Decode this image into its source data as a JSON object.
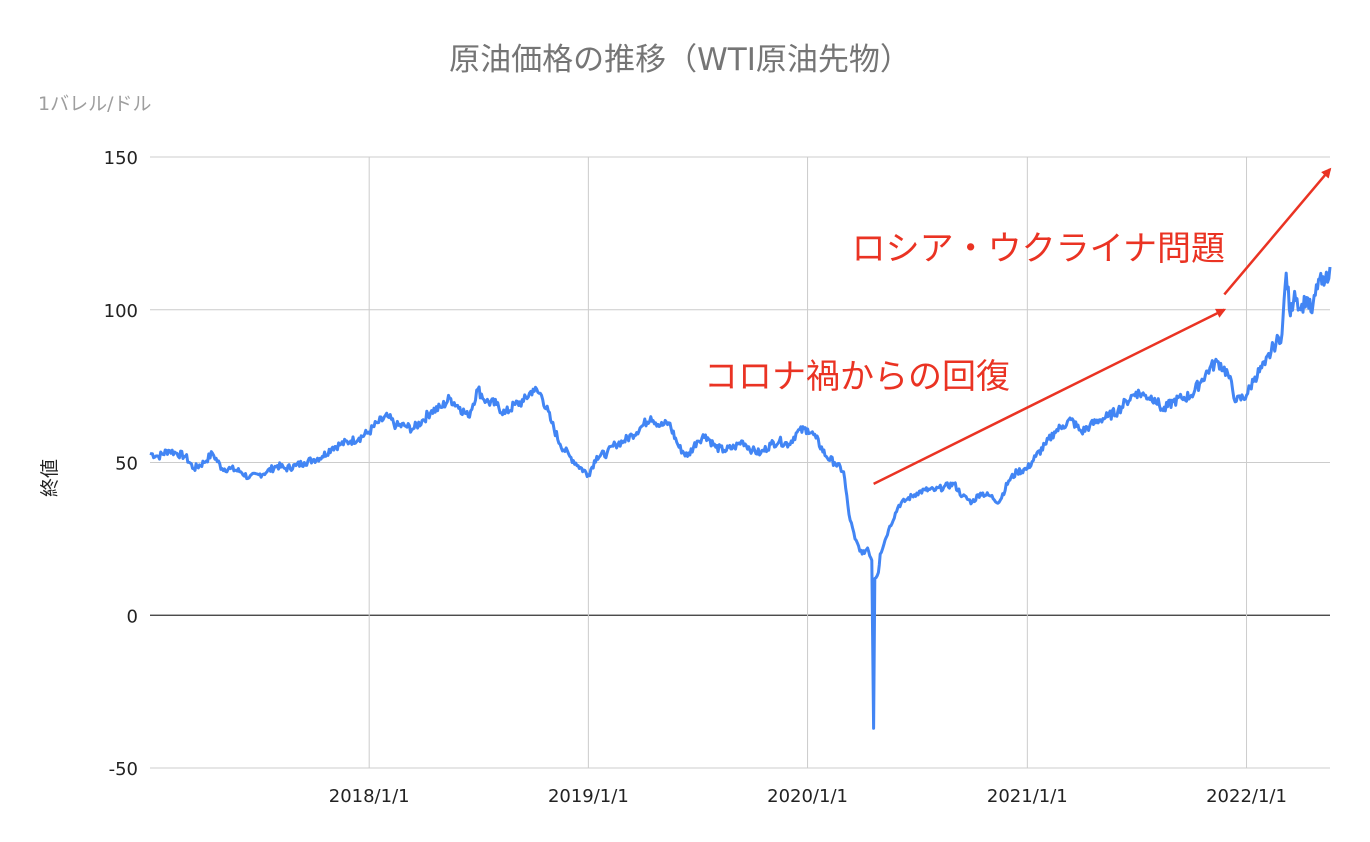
{
  "chart_data": {
    "type": "line",
    "title": "原油価格の推移（WTI原油先物）",
    "unit_label": "1バレル/ドル",
    "xlabel": "",
    "ylabel": "終値",
    "ylim": [
      -50,
      150
    ],
    "yticks": [
      -50,
      0,
      50,
      100,
      150
    ],
    "xlim": [
      "2017-01-01",
      "2022-05-20"
    ],
    "xticks": [
      "2018/1/1",
      "2019/1/1",
      "2020/1/1",
      "2021/1/1",
      "2022/1/1"
    ],
    "grid": true,
    "legend": "none",
    "line_color": "#4285f4",
    "annotation_color": "#ea3323",
    "series": [
      {
        "x": [
          "2017-01-01",
          "2017-01-15",
          "2017-02-01",
          "2017-02-15",
          "2017-03-01",
          "2017-03-15",
          "2017-04-01",
          "2017-04-15",
          "2017-05-01",
          "2017-05-15",
          "2017-06-01",
          "2017-06-15",
          "2017-07-01",
          "2017-07-15",
          "2017-08-01",
          "2017-08-15",
          "2017-09-01",
          "2017-09-15",
          "2017-10-01",
          "2017-10-15",
          "2017-11-01",
          "2017-11-15",
          "2017-12-01",
          "2017-12-15",
          "2018-01-01",
          "2018-01-15",
          "2018-02-01",
          "2018-02-15",
          "2018-03-01",
          "2018-03-15",
          "2018-04-01",
          "2018-04-15",
          "2018-05-01",
          "2018-05-15",
          "2018-06-01",
          "2018-06-15",
          "2018-07-01",
          "2018-07-15",
          "2018-08-01",
          "2018-08-15",
          "2018-09-01",
          "2018-09-15",
          "2018-10-01",
          "2018-10-15",
          "2018-11-01",
          "2018-11-15",
          "2018-12-01",
          "2018-12-15",
          "2019-01-01",
          "2019-01-15",
          "2019-02-01",
          "2019-02-15",
          "2019-03-01",
          "2019-03-15",
          "2019-04-01",
          "2019-04-15",
          "2019-05-01",
          "2019-05-15",
          "2019-06-01",
          "2019-06-15",
          "2019-07-01",
          "2019-07-15",
          "2019-08-01",
          "2019-08-15",
          "2019-09-01",
          "2019-09-15",
          "2019-10-01",
          "2019-10-15",
          "2019-11-01",
          "2019-11-15",
          "2019-12-01",
          "2019-12-15",
          "2020-01-01",
          "2020-01-15",
          "2020-02-01",
          "2020-02-15",
          "2020-03-01",
          "2020-03-10",
          "2020-03-20",
          "2020-04-01",
          "2020-04-10",
          "2020-04-17",
          "2020-04-20",
          "2020-04-22",
          "2020-04-28",
          "2020-05-01",
          "2020-05-15",
          "2020-06-01",
          "2020-06-15",
          "2020-07-01",
          "2020-07-15",
          "2020-08-01",
          "2020-08-15",
          "2020-09-01",
          "2020-09-15",
          "2020-10-01",
          "2020-10-15",
          "2020-11-01",
          "2020-11-15",
          "2020-12-01",
          "2020-12-15",
          "2021-01-01",
          "2021-01-15",
          "2021-02-01",
          "2021-02-15",
          "2021-03-01",
          "2021-03-15",
          "2021-04-01",
          "2021-04-15",
          "2021-05-01",
          "2021-05-15",
          "2021-06-01",
          "2021-06-15",
          "2021-07-01",
          "2021-07-15",
          "2021-08-01",
          "2021-08-15",
          "2021-09-01",
          "2021-09-15",
          "2021-10-01",
          "2021-10-15",
          "2021-11-01",
          "2021-11-15",
          "2021-12-01",
          "2021-12-15",
          "2022-01-01",
          "2022-01-15",
          "2022-02-01",
          "2022-02-15",
          "2022-03-01",
          "2022-03-08",
          "2022-03-15",
          "2022-03-22",
          "2022-04-01",
          "2022-04-11",
          "2022-04-20",
          "2022-05-01",
          "2022-05-10",
          "2022-05-20"
        ],
        "values": [
          53,
          52,
          54,
          53,
          52,
          48,
          50,
          53,
          48,
          48,
          47,
          45,
          46,
          47,
          49,
          48,
          49,
          50,
          51,
          52,
          55,
          56,
          57,
          58,
          60,
          63,
          65,
          62,
          62,
          61,
          64,
          67,
          68,
          71,
          68,
          65,
          74,
          70,
          69,
          66,
          69,
          70,
          74,
          72,
          63,
          56,
          52,
          49,
          46,
          52,
          53,
          56,
          57,
          59,
          62,
          65,
          62,
          63,
          55,
          52,
          57,
          59,
          55,
          54,
          55,
          57,
          54,
          53,
          56,
          57,
          56,
          60,
          61,
          58,
          52,
          50,
          47,
          33,
          25,
          20,
          22,
          18,
          -37,
          12,
          14,
          20,
          28,
          36,
          38,
          40,
          41,
          41,
          42,
          43,
          39,
          37,
          40,
          39,
          37,
          44,
          47,
          48,
          52,
          56,
          60,
          62,
          64,
          60,
          62,
          64,
          65,
          67,
          70,
          73,
          72,
          71,
          67,
          70,
          71,
          72,
          76,
          81,
          83,
          79,
          70,
          72,
          78,
          82,
          88,
          92,
          112,
          98,
          106,
          100,
          104,
          99,
          110,
          108,
          114
        ]
      }
    ],
    "annotations": [
      {
        "text": "コロナ禍からの回復",
        "arrow_from": {
          "x": "2020-04-20",
          "y": 43
        },
        "arrow_to": {
          "x": "2021-11-25",
          "y": 100
        }
      },
      {
        "text": "ロシア・ウクライナ問題",
        "arrow_from": {
          "x": "2021-11-25",
          "y": 105
        },
        "arrow_to": {
          "x": "2022-05-20",
          "y": 146
        }
      }
    ]
  }
}
